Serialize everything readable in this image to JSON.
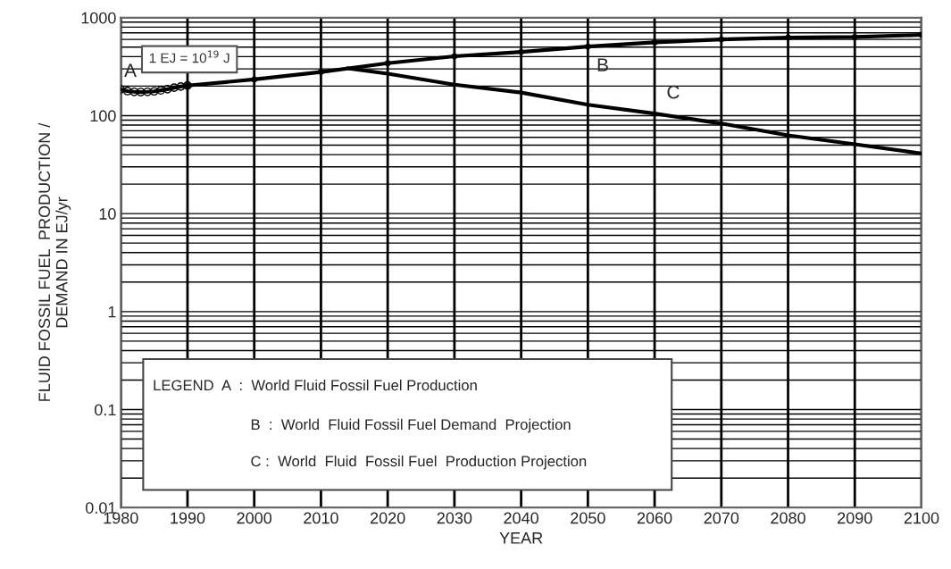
{
  "chart_data": {
    "type": "line",
    "xlabel": "YEAR",
    "ylabel": "FLUID FOSSIL FUEL  PRODUCTION /\nDEMAND IN EJ/yr",
    "series": [
      {
        "name": "A",
        "color": "#000000",
        "marker": "circle",
        "x": [
          1980,
          1981,
          1982,
          1983,
          1984,
          1985,
          1986,
          1987,
          1988,
          1989,
          1990
        ],
        "values": [
          185,
          178,
          175,
          174,
          175,
          177,
          181,
          186,
          193,
          198,
          203
        ]
      },
      {
        "name": "B",
        "color": "#000000",
        "marker": "circle",
        "x": [
          1990,
          2000,
          2010,
          2020,
          2030,
          2040,
          2050,
          2060,
          2070,
          2080,
          2090,
          2100
        ],
        "values": [
          203,
          234,
          279,
          343,
          403,
          447,
          507,
          559,
          600,
          626,
          634,
          667
        ]
      },
      {
        "name": "C",
        "color": "#000000",
        "x": [
          2014,
          2020,
          2030,
          2040,
          2050,
          2060,
          2070,
          2080,
          2090,
          2100
        ],
        "values": [
          304,
          268,
          207,
          172,
          129,
          105,
          83,
          63,
          51,
          41
        ]
      }
    ],
    "annotations": [
      "1 EJ = 10$^{19}$ J",
      "LEGEND  A  :  World Fluid Fossil Fuel Production",
      "B  :  World  Fluid Fossil Fuel Demand  Projection",
      "C :  World  Fluid  Fossil Fuel  Production Projection"
    ],
    "log": "y",
    "grid": true,
    "xlim": [
      1980,
      2100
    ],
    "ylim": [
      0.01,
      1000
    ],
    "xticks": [
      1980,
      1990,
      2000,
      2010,
      2020,
      2030,
      2040,
      2050,
      2060,
      2070,
      2080,
      2090,
      2100
    ],
    "yticks": [
      0.01,
      0.1,
      1,
      10,
      100,
      1000
    ]
  }
}
